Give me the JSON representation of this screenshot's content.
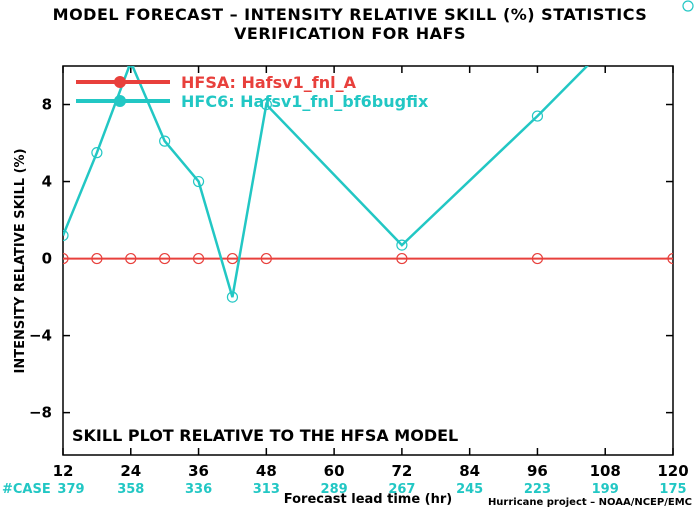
{
  "chart_data": {
    "type": "line",
    "title": "MODEL FORECAST – INTENSITY RELATIVE SKILL (%) STATISTICS",
    "subtitle": "VERIFICATION FOR HAFS",
    "xlabel": "Forecast lead time (hr)",
    "ylabel": "INTENSITY RELATIVE SKILL (%)",
    "xlim": [
      12,
      120
    ],
    "ylim": [
      -10.2,
      10
    ],
    "x_ticks": [
      12,
      24,
      36,
      48,
      60,
      72,
      84,
      96,
      108,
      120
    ],
    "y_ticks": [
      -8,
      -4,
      0,
      4,
      8
    ],
    "y_tick_labels": [
      "−8",
      "−4",
      "0",
      "4",
      "8"
    ],
    "grid": false,
    "legend_position": "top-left",
    "annotation": "SKILL PLOT RELATIVE TO THE HFSA MODEL",
    "case_label": "#CASE",
    "case_x": [
      12,
      24,
      36,
      48,
      60,
      72,
      84,
      96,
      108,
      120
    ],
    "case_counts": [
      "379",
      "358",
      "336",
      "313",
      "289",
      "267",
      "245",
      "223",
      "199",
      "175"
    ],
    "series": [
      {
        "name": "HFSA: Hafsv1_fnl_A",
        "color": "#e8403c",
        "marker": "open-circle",
        "x": [
          12,
          18,
          24,
          30,
          36,
          42,
          48,
          72,
          96,
          120
        ],
        "values": [
          0,
          0,
          0,
          0,
          0,
          0,
          0,
          0,
          0,
          0
        ]
      },
      {
        "name": "HFC6: Hafsv1_fnl_bf6bugfix",
        "color": "#22c7c4",
        "marker": "open-circle",
        "x": [
          12,
          18,
          24,
          30,
          36,
          42,
          48,
          72,
          96,
          120
        ],
        "values": [
          1.2,
          5.5,
          10.2,
          6.1,
          4.0,
          -2.0,
          8.0,
          0.7,
          7.4,
          14.5
        ]
      }
    ]
  },
  "footer": {
    "credit": "Hurricane project – NOAA/NCEP/EMC"
  }
}
